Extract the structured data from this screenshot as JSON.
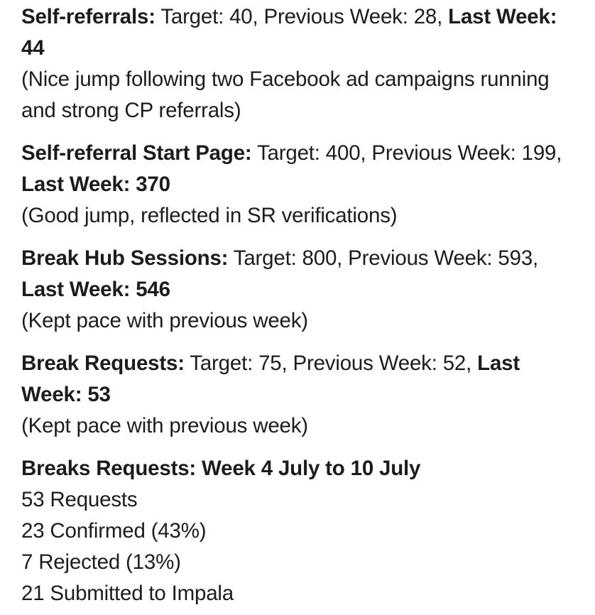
{
  "colors": {
    "text": "#1d1c1d",
    "background": "#ffffff"
  },
  "message": {
    "paragraphs": [
      {
        "lines": [
          {
            "segments": [
              {
                "t": "Self-referrals:",
                "b": true
              },
              {
                "t": " Target: 40, Previous Week: 28, ",
                "b": false
              },
              {
                "t": "Last Week: 44",
                "b": true
              }
            ]
          },
          {
            "segments": [
              {
                "t": "(Nice jump following two Facebook ad campaigns running and strong CP referrals)",
                "b": false
              }
            ]
          }
        ]
      },
      {
        "lines": [
          {
            "segments": [
              {
                "t": "Self-referral Start Page:",
                "b": true
              },
              {
                "t": " Target: 400, Previous Week: 199, ",
                "b": false
              },
              {
                "t": "Last Week: 370",
                "b": true
              }
            ]
          },
          {
            "segments": [
              {
                "t": "(Good jump, reflected in SR verifications)",
                "b": false
              }
            ]
          }
        ]
      },
      {
        "lines": [
          {
            "segments": [
              {
                "t": "Break Hub Sessions:",
                "b": true
              },
              {
                "t": " Target: 800, Previous Week: 593, ",
                "b": false
              },
              {
                "t": "Last Week: 546",
                "b": true
              }
            ]
          },
          {
            "segments": [
              {
                "t": "(Kept pace with previous week)",
                "b": false
              }
            ]
          }
        ]
      },
      {
        "lines": [
          {
            "segments": [
              {
                "t": "Break Requests:",
                "b": true
              },
              {
                "t": " Target: 75, Previous Week: 52, ",
                "b": false
              },
              {
                "t": "Last Week: 53",
                "b": true
              }
            ]
          },
          {
            "segments": [
              {
                "t": "(Kept pace with previous week)",
                "b": false
              }
            ]
          }
        ]
      },
      {
        "lines": [
          {
            "segments": [
              {
                "t": "Breaks Requests: Week 4 July to 10 July",
                "b": true
              }
            ]
          },
          {
            "segments": [
              {
                "t": "53 Requests",
                "b": false
              }
            ]
          },
          {
            "segments": [
              {
                "t": "23 Confirmed (43%)",
                "b": false
              }
            ]
          },
          {
            "segments": [
              {
                "t": "7 Rejected (13%)",
                "b": false
              }
            ]
          },
          {
            "segments": [
              {
                "t": "21 Submitted to Impala",
                "b": false
              }
            ]
          }
        ]
      }
    ]
  }
}
